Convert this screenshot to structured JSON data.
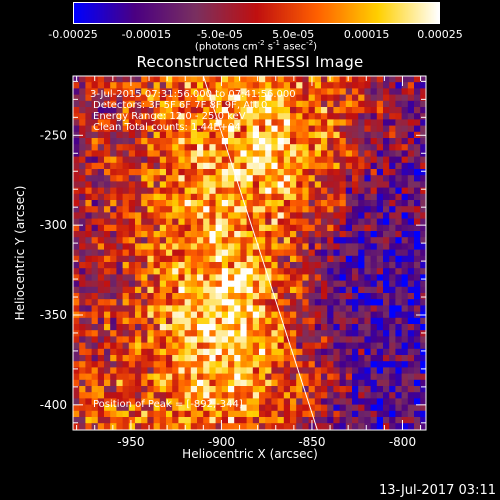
{
  "title": "Reconstructed RHESSI Image",
  "colorbar": {
    "tick_labels": [
      "-0.00025",
      "-0.00015",
      "-5.0e-05",
      "5.0e-05",
      "0.00015",
      "0.00025"
    ],
    "tick_values": [
      -0.00025,
      -0.00015,
      -5e-05,
      5e-05,
      0.00015,
      0.00025
    ],
    "unit_label": "(photons cm",
    "unit_parts": [
      "(photons cm",
      "-2",
      " s",
      "-1",
      " asec",
      "-2",
      ")"
    ]
  },
  "annotations": {
    "time_range": "3-Jul-2015 07:31:56.000 to 07:41:56.000",
    "detectors": "Detectors: 3F 5F 6F 7F 8F 9F, Att 0",
    "energy_range": "Energy Range: 12.0 - 25.0 keV",
    "clean_counts": "Clean    Total counts: 1.44E+04",
    "peak": "Position of Peak = [-892,-344]"
  },
  "footer": "13-Jul-2017 03:11",
  "chart_data": {
    "type": "heatmap",
    "title": "Reconstructed RHESSI Image",
    "xlabel": "Heliocentric X (arcsec)",
    "ylabel": "Heliocentric Y (arcsec)",
    "xlim": [
      -982,
      -787
    ],
    "ylim": [
      -414,
      -217
    ],
    "x_ticks": [
      -950,
      -900,
      -850,
      -800
    ],
    "y_ticks": [
      -400,
      -350,
      -300,
      -250
    ],
    "x_tick_labels": [
      "-950",
      "-900",
      "-850",
      "-800"
    ],
    "y_tick_labels": [
      "-400",
      "-350",
      "-300",
      "-250"
    ],
    "value_range": [
      -0.00025,
      0.00025
    ],
    "colormap": [
      "#0000ff",
      "#4b0082",
      "#7a3060",
      "#c01010",
      "#ff6000",
      "#ffd000",
      "#ffffff"
    ],
    "peak": [
      -892,
      -344
    ],
    "limb_line": [
      [
        -910,
        -217
      ],
      [
        -847,
        -414
      ]
    ],
    "grid": false
  }
}
